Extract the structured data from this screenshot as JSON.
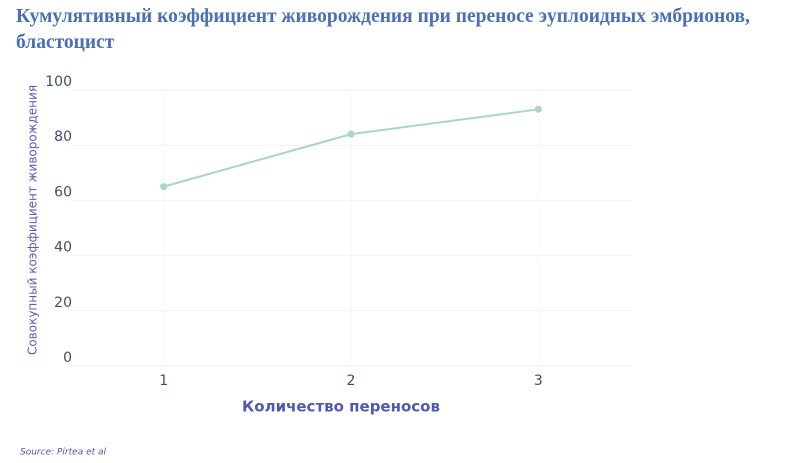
{
  "chart_data": {
    "type": "line",
    "title": "Кумулятивный коэффициент живорождения при переносе эуплоидных эмбрионов, бластоцист",
    "x_label": "Количество переносов",
    "y_label": "Совокупный коэффициент живорождения",
    "source": "Source: Pirtea et al",
    "x": [
      1,
      2,
      3
    ],
    "series": [
      {
        "color": "#a9d6c9",
        "values": [
          65,
          84,
          93
        ]
      }
    ],
    "xlim": [
      0.5,
      3.5
    ],
    "xticks": [
      1,
      2,
      3
    ],
    "ylim": [
      0,
      100
    ],
    "yticks": [
      0,
      20,
      40,
      60,
      80,
      100
    ],
    "grid": true
  }
}
